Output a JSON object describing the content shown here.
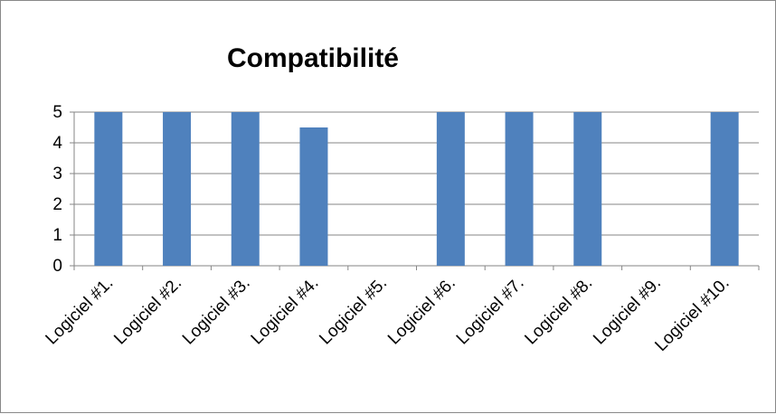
{
  "chart_data": {
    "type": "bar",
    "title": "Compatibilité",
    "xlabel": "",
    "ylabel": "",
    "categories": [
      "Logiciel #1.",
      "Logiciel #2.",
      "Logiciel #3.",
      "Logiciel #4.",
      "Logiciel #5.",
      "Logiciel #6.",
      "Logiciel #7.",
      "Logiciel #8.",
      "Logiciel #9.",
      "Logiciel #10."
    ],
    "values": [
      5,
      5,
      5,
      4.5,
      0,
      5,
      5,
      5,
      0,
      5
    ],
    "ylim": [
      0,
      5
    ],
    "yticks": [
      "0",
      "1",
      "2",
      "3",
      "4",
      "5"
    ],
    "grid": true,
    "legend": "none",
    "bar_color": "#4F81BD"
  }
}
